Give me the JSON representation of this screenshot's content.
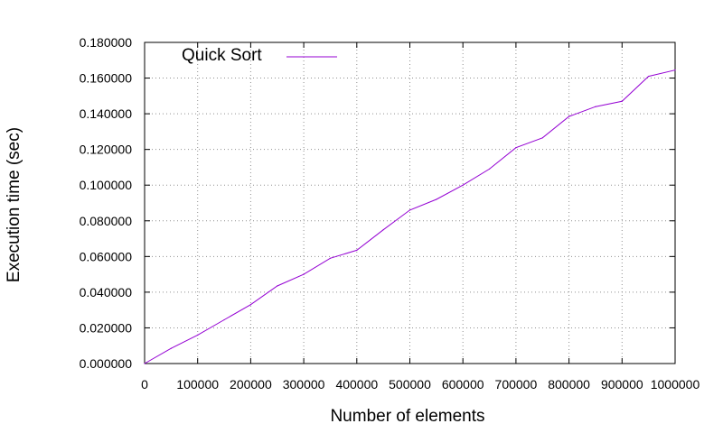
{
  "chart_data": {
    "type": "line",
    "title": "",
    "xlabel": "Number of elements",
    "ylabel": "Execution time (sec)",
    "xlim": [
      0,
      1000000
    ],
    "ylim": [
      0,
      0.18
    ],
    "x_ticks": [
      "0",
      "100000",
      "200000",
      "300000",
      "400000",
      "500000",
      "600000",
      "700000",
      "800000",
      "900000",
      "1000000"
    ],
    "y_ticks": [
      "0.000000",
      "0.020000",
      "0.040000",
      "0.060000",
      "0.080000",
      "0.100000",
      "0.120000",
      "0.140000",
      "0.160000",
      "0.180000"
    ],
    "grid": true,
    "grid_style": "dotted",
    "legend_position": "top-left",
    "series": [
      {
        "name": "Quick Sort",
        "color": "#9400d3",
        "x": [
          0,
          50000,
          100000,
          150000,
          200000,
          250000,
          300000,
          350000,
          400000,
          450000,
          500000,
          550000,
          600000,
          650000,
          700000,
          750000,
          800000,
          850000,
          900000,
          950000,
          1000000
        ],
        "y": [
          0.0,
          0.0085,
          0.016,
          0.0245,
          0.033,
          0.0435,
          0.05,
          0.059,
          0.0635,
          0.075,
          0.086,
          0.092,
          0.1,
          0.109,
          0.121,
          0.1265,
          0.1385,
          0.144,
          0.147,
          0.161,
          0.1645
        ]
      }
    ]
  }
}
